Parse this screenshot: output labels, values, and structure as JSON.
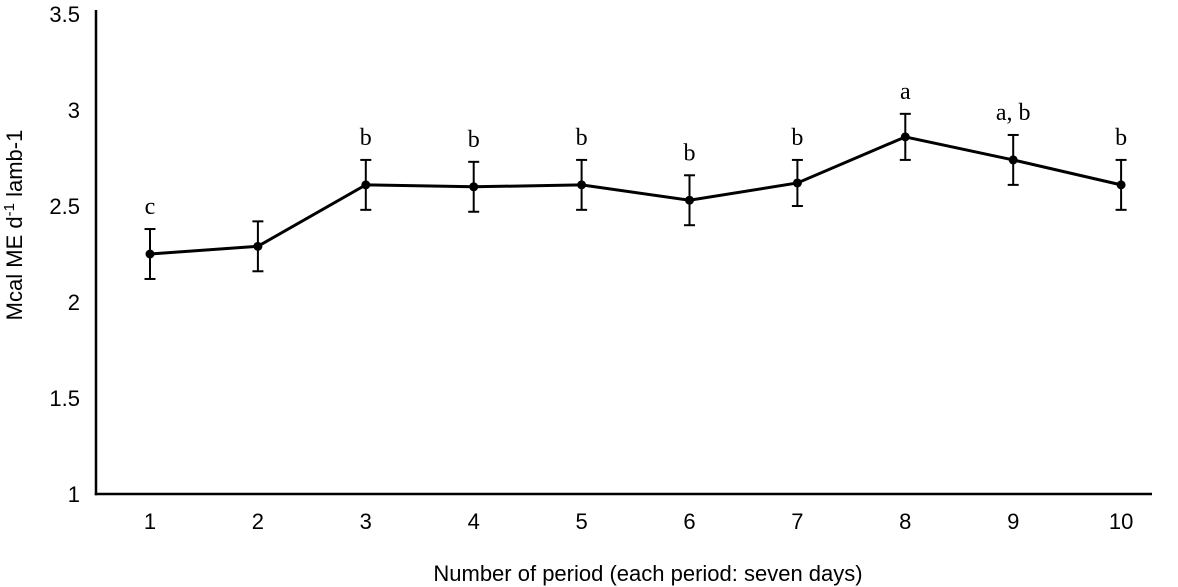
{
  "figure": {
    "background": "#ffffff",
    "ink": "#000000"
  },
  "chart_data": {
    "type": "line",
    "xlabel": "Number of period (each period: seven days)",
    "ylabel": "Mcal ME d⁻¹ lamb-1",
    "ylabel_parts": {
      "prefix": "Mcal ME d",
      "superscript": "-1",
      "suffix": " lamb-1"
    },
    "x": [
      1,
      2,
      3,
      4,
      5,
      6,
      7,
      8,
      9,
      10
    ],
    "xtick_labels": [
      "1",
      "2",
      "3",
      "4",
      "5",
      "6",
      "7",
      "8",
      "9",
      "10"
    ],
    "yticks": [
      1,
      1.5,
      2,
      2.5,
      3,
      3.5
    ],
    "ytick_labels": [
      "1",
      "1.5",
      "2",
      "2.5",
      "3",
      "3.5"
    ],
    "ylim": [
      1,
      3.5
    ],
    "grid": false,
    "legend": false,
    "error_bars": true,
    "marker": "filled-circle",
    "series": [
      {
        "values": [
          2.25,
          2.29,
          2.61,
          2.6,
          2.61,
          2.53,
          2.62,
          2.86,
          2.74,
          2.61
        ],
        "errors": [
          0.13,
          0.13,
          0.13,
          0.13,
          0.13,
          0.13,
          0.12,
          0.12,
          0.13,
          0.13
        ],
        "point_labels": [
          "c",
          "",
          "b",
          "b",
          "b",
          "b",
          "b",
          "a",
          "a, b",
          "b"
        ],
        "color": "#000000"
      }
    ]
  }
}
